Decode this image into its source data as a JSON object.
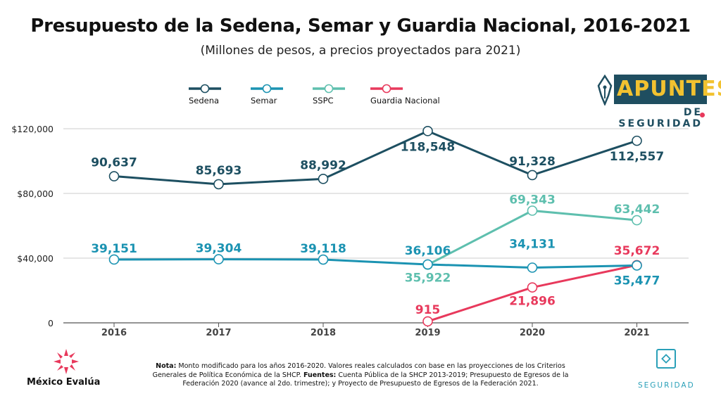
{
  "chart_data": {
    "type": "line",
    "title": "Presupuesto de la Sedena, Semar y Guardia Nacional, 2016-2021",
    "subtitle": "(Millones de pesos, a precios proyectados para 2021)",
    "x": [
      "2016",
      "2017",
      "2018",
      "2019",
      "2020",
      "2021"
    ],
    "yticks": [
      "0",
      "$40,000",
      "$80,000",
      "$120,000"
    ],
    "ylim": [
      0,
      120000
    ],
    "grid": true,
    "legend_position": "top-left",
    "series": [
      {
        "name": "Sedena",
        "color": "#1d4f61",
        "values": [
          90637,
          85693,
          88992,
          118548,
          91328,
          112557
        ],
        "labels": [
          "90,637",
          "85,693",
          "88,992",
          "118,548",
          "91,328",
          "112,557"
        ]
      },
      {
        "name": "Semar",
        "color": "#1b93b2",
        "values": [
          39151,
          39304,
          39118,
          36106,
          34131,
          35477
        ],
        "labels": [
          "39,151",
          "39,304",
          "39,118",
          "36,106",
          "34,131",
          "35,477"
        ]
      },
      {
        "name": "SSPC",
        "color": "#5ebfae",
        "values": [
          null,
          null,
          null,
          35922,
          69343,
          63442
        ],
        "labels": [
          "",
          "",
          "",
          "35,922",
          "69,343",
          "63,442"
        ]
      },
      {
        "name": "Guardia Nacional",
        "color": "#e8395c",
        "values": [
          null,
          null,
          null,
          915,
          21896,
          35672
        ],
        "labels": [
          "",
          "",
          "",
          "915",
          "21,896",
          "35,672"
        ]
      }
    ]
  },
  "note": {
    "nota_label": "Nota:",
    "nota_text": " Monto modificado para los años 2016-2020. Valores reales calculados con base en las proyecciones de los Criterios Generales de Política Económica de la SHCP. ",
    "fuentes_label": "Fuentes:",
    "fuentes_text": " Cuenta Pública de la SHCP 2013-2019; Presupuesto de Egresos de la Federación 2020 (avance al 2do. trimestre); y Proyecto de Presupuesto de Egresos de la Federación 2021."
  },
  "logos": {
    "apuntes_word": "APUNTES",
    "apuntes_sub": "DE SEGURIDAD",
    "mexico_evalua": "México Evalúa",
    "seguridad": "SEGURIDAD"
  },
  "colors": {
    "grid": "#cccccc",
    "axis": "#555555",
    "apuntes_blue": "#1f4e60",
    "apuntes_yellow": "#f2c230",
    "mexico_evalua_red": "#e8395c"
  }
}
